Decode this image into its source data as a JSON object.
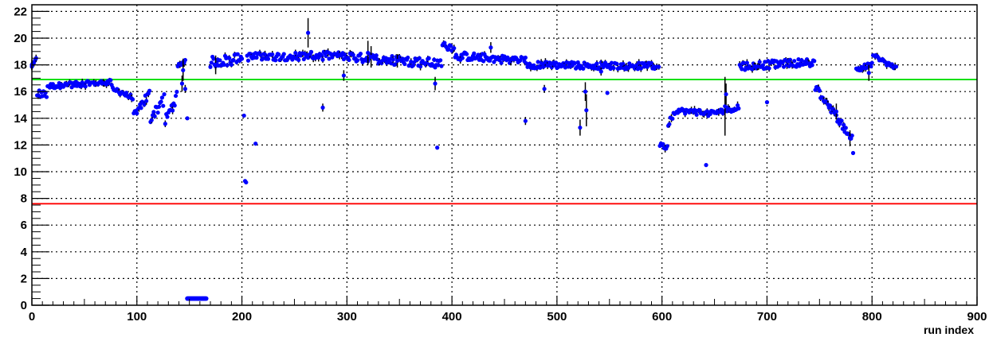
{
  "chart_data": {
    "type": "scatter",
    "title": "",
    "xlabel": "run index",
    "ylabel": "",
    "xlim": [
      0,
      900
    ],
    "ylim": [
      0,
      22.5
    ],
    "xticks": [
      0,
      100,
      200,
      300,
      400,
      500,
      600,
      700,
      800,
      900
    ],
    "yticks": [
      0,
      2,
      4,
      6,
      8,
      10,
      12,
      14,
      16,
      18,
      20,
      22
    ],
    "grid": true,
    "legend": "none",
    "colors": {
      "points": "#0000ff",
      "error_bars": "#000000",
      "upper_reference": "#00dd00",
      "lower_reference": "#ff0000",
      "frame": "#000000",
      "grid": "#000000"
    },
    "reference_lines": [
      {
        "y": 16.9,
        "color": "#00dd00"
      },
      {
        "y": 7.6,
        "color": "#ff0000"
      }
    ],
    "segments": [
      {
        "x0": 0,
        "x1": 4,
        "y0": 17.8,
        "y1": 18.4,
        "noise": 0.2
      },
      {
        "x0": 5,
        "x1": 14,
        "y0": 15.9,
        "y1": 15.7,
        "noise": 0.3
      },
      {
        "x0": 15,
        "x1": 75,
        "y0": 16.4,
        "y1": 16.7,
        "noise": 0.2
      },
      {
        "x0": 76,
        "x1": 96,
        "y0": 16.3,
        "y1": 15.5,
        "noise": 0.2
      },
      {
        "x0": 97,
        "x1": 112,
        "y0": 14.2,
        "y1": 15.8,
        "noise": 0.4
      },
      {
        "x0": 113,
        "x1": 126,
        "y0": 14.0,
        "y1": 15.5,
        "noise": 0.5
      },
      {
        "x0": 127,
        "x1": 138,
        "y0": 13.8,
        "y1": 15.6,
        "noise": 0.4
      },
      {
        "x0": 139,
        "x1": 146,
        "y0": 17.8,
        "y1": 18.4,
        "noise": 0.2
      },
      {
        "x0": 170,
        "x1": 200,
        "y0": 18.2,
        "y1": 18.5,
        "noise": 0.4
      },
      {
        "x0": 205,
        "x1": 295,
        "y0": 18.6,
        "y1": 18.7,
        "noise": 0.3
      },
      {
        "x0": 296,
        "x1": 390,
        "y0": 18.6,
        "y1": 18.1,
        "noise": 0.35
      },
      {
        "x0": 391,
        "x1": 402,
        "y0": 19.5,
        "y1": 19.3,
        "noise": 0.3
      },
      {
        "x0": 403,
        "x1": 470,
        "y0": 18.7,
        "y1": 18.3,
        "noise": 0.3
      },
      {
        "x0": 471,
        "x1": 597,
        "y0": 18.0,
        "y1": 17.9,
        "noise": 0.25
      },
      {
        "x0": 598,
        "x1": 605,
        "y0": 12.0,
        "y1": 11.8,
        "noise": 0.15
      },
      {
        "x0": 606,
        "x1": 612,
        "y0": 13.7,
        "y1": 14.4,
        "noise": 0.3
      },
      {
        "x0": 613,
        "x1": 640,
        "y0": 14.6,
        "y1": 14.4,
        "noise": 0.2
      },
      {
        "x0": 641,
        "x1": 673,
        "y0": 14.3,
        "y1": 14.8,
        "noise": 0.2
      },
      {
        "x0": 674,
        "x1": 745,
        "y0": 17.9,
        "y1": 18.2,
        "noise": 0.3
      },
      {
        "x0": 746,
        "x1": 781,
        "y0": 16.3,
        "y1": 12.5,
        "noise": 0.3
      },
      {
        "x0": 785,
        "x1": 800,
        "y0": 17.7,
        "y1": 18.0,
        "noise": 0.2
      },
      {
        "x0": 801,
        "x1": 823,
        "y0": 18.7,
        "y1": 17.7,
        "noise": 0.2
      }
    ],
    "special_points": [
      {
        "x": 0,
        "y": 18.0,
        "err": 0.4
      },
      {
        "x": 143,
        "y": 16.6,
        "err": 0.6
      },
      {
        "x": 144,
        "y": 17.6,
        "err": 0.8
      },
      {
        "x": 146,
        "y": 16.2,
        "err": 0.3
      },
      {
        "x": 148,
        "y": 14.0,
        "err": 0
      },
      {
        "x": 175,
        "y": 18.0,
        "err": 0.7
      },
      {
        "x": 202,
        "y": 14.2,
        "err": 0
      },
      {
        "x": 203,
        "y": 9.3,
        "err": 0
      },
      {
        "x": 204,
        "y": 9.2,
        "err": 0
      },
      {
        "x": 213,
        "y": 12.1,
        "err": 0
      },
      {
        "x": 263,
        "y": 20.4,
        "err": 1.1
      },
      {
        "x": 277,
        "y": 14.8,
        "err": 0.3
      },
      {
        "x": 297,
        "y": 17.2,
        "err": 0.4
      },
      {
        "x": 320,
        "y": 18.9,
        "err": 0.9
      },
      {
        "x": 323,
        "y": 18.6,
        "err": 0.8
      },
      {
        "x": 348,
        "y": 18.3,
        "err": 0.5
      },
      {
        "x": 384,
        "y": 16.6,
        "err": 0.5
      },
      {
        "x": 386,
        "y": 11.8,
        "err": 0
      },
      {
        "x": 437,
        "y": 19.3,
        "err": 0.4
      },
      {
        "x": 470,
        "y": 13.8,
        "err": 0.3
      },
      {
        "x": 488,
        "y": 16.2,
        "err": 0.3
      },
      {
        "x": 522,
        "y": 13.3,
        "err": 0.6
      },
      {
        "x": 527,
        "y": 16.0,
        "err": 0.7
      },
      {
        "x": 528,
        "y": 14.6,
        "err": 1.2
      },
      {
        "x": 542,
        "y": 17.5,
        "err": 0.3
      },
      {
        "x": 548,
        "y": 15.9,
        "err": 0
      },
      {
        "x": 642,
        "y": 10.5,
        "err": 0
      },
      {
        "x": 660,
        "y": 14.9,
        "err": 2.2
      },
      {
        "x": 661,
        "y": 15.8,
        "err": 0.8
      },
      {
        "x": 700,
        "y": 15.2,
        "err": 0
      },
      {
        "x": 766,
        "y": 14.5,
        "err": 0.6
      },
      {
        "x": 779,
        "y": 12.5,
        "err": 0.6
      },
      {
        "x": 782,
        "y": 11.4,
        "err": 0
      },
      {
        "x": 797,
        "y": 17.4,
        "err": 0.6
      }
    ],
    "low_band": {
      "x0": 148,
      "x1": 166,
      "y": 0.5
    }
  }
}
